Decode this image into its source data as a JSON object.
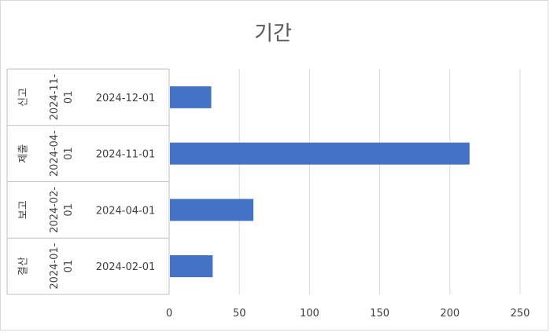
{
  "chart_data": {
    "type": "bar",
    "orientation": "horizontal",
    "title": "기간",
    "categories": [
      {
        "level1": "결산",
        "level2": "2024-01-01",
        "level3": "2024-02-01"
      },
      {
        "level1": "보고",
        "level2": "2024-02-01",
        "level3": "2024-04-01"
      },
      {
        "level1": "제출",
        "level2": "2024-04-01",
        "level3": "2024-11-01"
      },
      {
        "level1": "신고",
        "level2": "2024-11-01",
        "level3": "2024-12-01"
      }
    ],
    "values": [
      31,
      60,
      214,
      30
    ],
    "xlim": [
      0,
      250
    ],
    "xticks": [
      0,
      50,
      100,
      150,
      200,
      250
    ],
    "grid": "vertical",
    "legend": "none",
    "bar_color": "#4472c4"
  }
}
